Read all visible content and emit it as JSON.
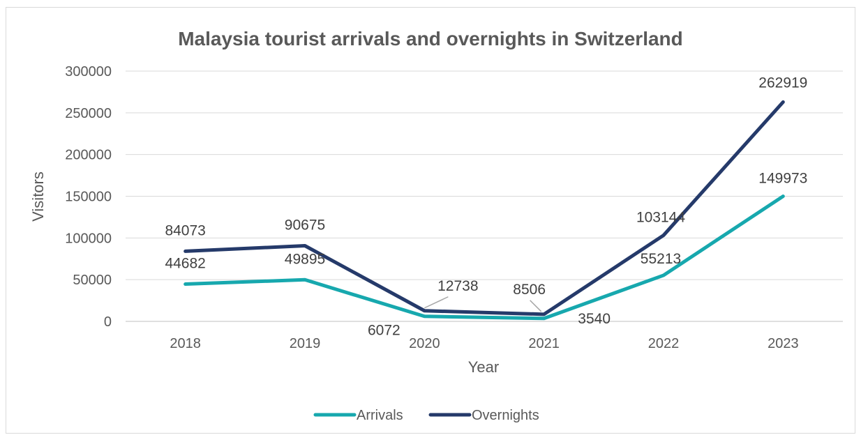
{
  "chart_data": {
    "type": "line",
    "title": "Malaysia tourist arrivals and overnights in Switzerland",
    "xlabel": "Year",
    "ylabel": "Visitors",
    "categories": [
      "2018",
      "2019",
      "2020",
      "2021",
      "2022",
      "2023"
    ],
    "ylim": [
      0,
      300000
    ],
    "yticks": [
      "0",
      "50000",
      "100000",
      "150000",
      "200000",
      "250000",
      "300000"
    ],
    "grid": true,
    "legend_position": "bottom",
    "series": [
      {
        "name": "Arrivals",
        "color": "#17A8AE",
        "values": [
          44682,
          49895,
          6072,
          3540,
          55213,
          149973
        ],
        "labels": [
          "44682",
          "49895",
          "6072",
          "3540",
          "55213",
          "149973"
        ]
      },
      {
        "name": "Overnights",
        "color": "#253A6A",
        "values": [
          84073,
          90675,
          12738,
          8506,
          103144,
          262919
        ],
        "labels": [
          "84073",
          "90675",
          "12738",
          "8506",
          "103144",
          "262919"
        ]
      }
    ]
  }
}
